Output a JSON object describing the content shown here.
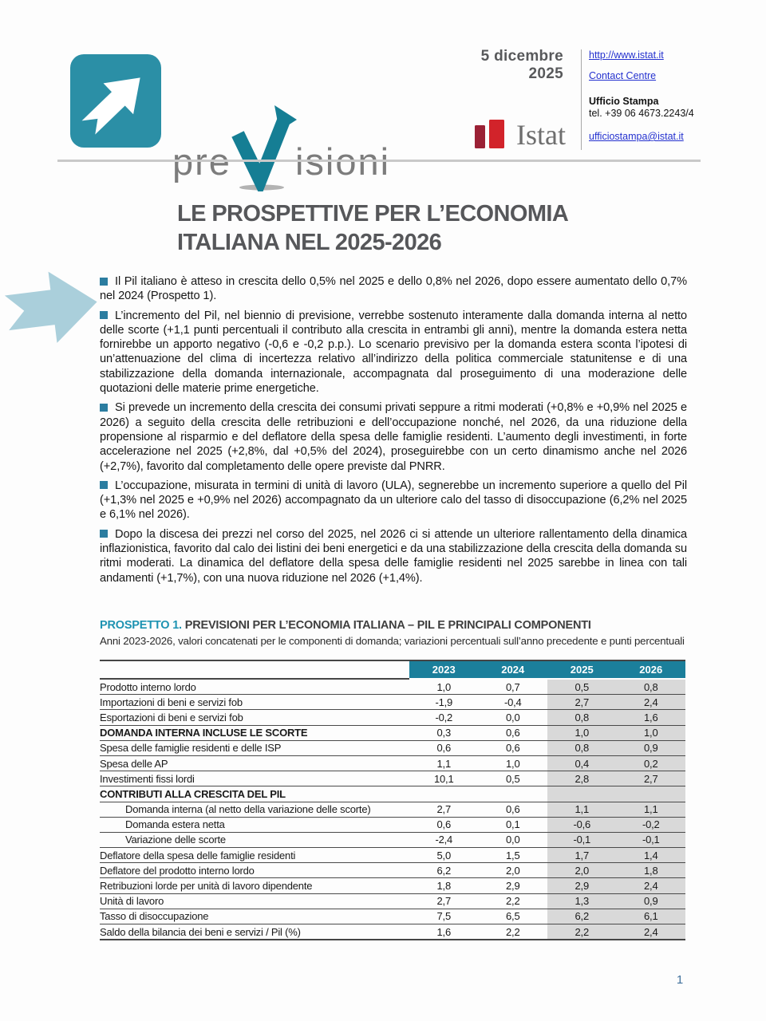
{
  "header": {
    "date": "5 dicembre 2025",
    "brand": {
      "pre": "pre",
      "v": "V",
      "rest": "isioni"
    },
    "links": {
      "website": "http://www.istat.it",
      "contact_centre": "Contact Centre",
      "email": "ufficiostampa@istat.it"
    },
    "press_office": {
      "title": "Ufficio Stampa",
      "phone": "tel. +39 06 4673.2243/4"
    },
    "istat_logo_text": "Istat"
  },
  "title": {
    "line1": "LE PROSPETTIVE PER L’ECONOMIA",
    "line2": "ITALIANA NEL 2025-2026"
  },
  "bullets": [
    "Il Pil italiano è atteso in crescita dello 0,5% nel 2025 e dello 0,8% nel 2026, dopo essere aumentato dello 0,7% nel 2024 (Prospetto 1).",
    "L’incremento del Pil, nel biennio di previsione, verrebbe sostenuto interamente dalla domanda interna al netto delle scorte (+1,1 punti percentuali il contributo alla crescita in entrambi gli anni), mentre la domanda estera netta fornirebbe un apporto negativo (-0,6 e -0,2 p.p.). Lo scenario previsivo per la domanda estera sconta l’ipotesi di un’attenuazione del clima di incertezza relativo all’indirizzo della politica commerciale statunitense e di una stabilizzazione della domanda internazionale, accompagnata dal proseguimento di una moderazione delle quotazioni delle materie prime energetiche.",
    "Si prevede un incremento della crescita dei consumi privati seppure a ritmi moderati (+0,8% e +0,9% nel 2025 e 2026) a seguito della crescita delle retribuzioni e dell’occupazione nonché, nel 2026, da una riduzione della propensione al risparmio e del deflatore della spesa delle famiglie residenti. L’aumento degli investimenti, in forte accelerazione nel 2025 (+2,8%, dal +0,5% del 2024), proseguirebbe con un certo dinamismo anche nel 2026 (+2,7%), favorito dal completamento delle opere previste dal PNRR.",
    "L’occupazione, misurata in termini di unità di lavoro (ULA), segnerebbe un incremento superiore a quello del Pil (+1,3% nel 2025 e +0,9% nel 2026) accompagnato da un ulteriore calo del tasso di disoccupazione (6,2% nel 2025 e 6,1% nel 2026).",
    "Dopo la discesa dei prezzi nel corso del 2025, nel 2026 ci si attende un ulteriore rallentamento della dinamica inflazionistica, favorito dal calo dei listini dei beni energetici e da una stabilizzazione della crescita della domanda su ritmi moderati. La dinamica del deflatore della spesa delle famiglie residenti nel 2025 sarebbe in linea con tali andamenti (+1,7%), con una nuova riduzione nel 2026 (+1,4%)."
  ],
  "prospetto": {
    "label": "PROSPETTO 1.",
    "heading": "PREVISIONI PER L’ECONOMIA ITALIANA – PIL E PRINCIPALI COMPONENTI",
    "subtitle": "Anni 2023-2026, valori concatenati per le componenti di domanda; variazioni percentuali sull’anno precedente e punti percentuali"
  },
  "chart_data": {
    "type": "table",
    "title": "PROSPETTO 1. PREVISIONI PER L’ECONOMIA ITALIANA – PIL E PRINCIPALI COMPONENTI",
    "columns": [
      "2023",
      "2024",
      "2025",
      "2026"
    ],
    "rows": [
      {
        "label": "Prodotto interno lordo",
        "values": [
          "1,0",
          "0,7",
          "0,5",
          "0,8"
        ],
        "bold": false,
        "indent": false
      },
      {
        "label": "Importazioni di beni e servizi fob",
        "values": [
          "-1,9",
          "-0,4",
          "2,7",
          "2,4"
        ],
        "bold": false,
        "indent": false
      },
      {
        "label": "Esportazioni di beni e servizi fob",
        "values": [
          "-0,2",
          "0,0",
          "0,8",
          "1,6"
        ],
        "bold": false,
        "indent": false
      },
      {
        "label": "DOMANDA INTERNA INCLUSE LE SCORTE",
        "values": [
          "0,3",
          "0,6",
          "1,0",
          "1,0"
        ],
        "bold": true,
        "indent": false
      },
      {
        "label": "Spesa delle famiglie residenti e delle ISP",
        "values": [
          "0,6",
          "0,6",
          "0,8",
          "0,9"
        ],
        "bold": false,
        "indent": false
      },
      {
        "label": "Spesa delle AP",
        "values": [
          "1,1",
          "1,0",
          "0,4",
          "0,2"
        ],
        "bold": false,
        "indent": false
      },
      {
        "label": "Investimenti fissi lordi",
        "values": [
          "10,1",
          "0,5",
          "2,8",
          "2,7"
        ],
        "bold": false,
        "indent": false
      },
      {
        "label": "CONTRIBUTI ALLA CRESCITA DEL PIL",
        "values": [
          "",
          "",
          "",
          ""
        ],
        "bold": true,
        "indent": false
      },
      {
        "label": "Domanda interna (al netto della variazione delle scorte)",
        "values": [
          "2,7",
          "0,6",
          "1,1",
          "1,1"
        ],
        "bold": false,
        "indent": true
      },
      {
        "label": "Domanda estera netta",
        "values": [
          "0,6",
          "0,1",
          "-0,6",
          "-0,2"
        ],
        "bold": false,
        "indent": true
      },
      {
        "label": "Variazione delle scorte",
        "values": [
          "-2,4",
          "0,0",
          "-0,1",
          "-0,1"
        ],
        "bold": false,
        "indent": true
      },
      {
        "label": "Deflatore della spesa delle famiglie residenti",
        "values": [
          "5,0",
          "1,5",
          "1,7",
          "1,4"
        ],
        "bold": false,
        "indent": false
      },
      {
        "label": "Deflatore del prodotto interno lordo",
        "values": [
          "6,2",
          "2,0",
          "2,0",
          "1,8"
        ],
        "bold": false,
        "indent": false
      },
      {
        "label": "Retribuzioni lorde per unità di lavoro dipendente",
        "values": [
          "1,8",
          "2,9",
          "2,9",
          "2,4"
        ],
        "bold": false,
        "indent": false
      },
      {
        "label": "Unità di lavoro",
        "values": [
          "2,7",
          "2,2",
          "1,3",
          "0,9"
        ],
        "bold": false,
        "indent": false
      },
      {
        "label": "Tasso di disoccupazione",
        "values": [
          "7,5",
          "6,5",
          "6,2",
          "6,1"
        ],
        "bold": false,
        "indent": false
      },
      {
        "label": "Saldo della bilancia dei beni e servizi / Pil (%)",
        "values": [
          "1,6",
          "2,2",
          "2,2",
          "2,4"
        ],
        "bold": false,
        "indent": false
      }
    ]
  },
  "footer": {
    "page_number": "1"
  },
  "colors": {
    "accent_teal": "#1b7f9b",
    "logo_teal": "#2b8fa6",
    "bullet_teal": "#2b7da0",
    "margin_arrow": "#aacfdb",
    "link_blue": "#2431cf",
    "istat_dark_red": "#9b2135",
    "istat_red": "#d2232a",
    "table_shade": "#d9d9d9",
    "title_gray": "#56575a",
    "page_number_blue": "#41719c"
  }
}
